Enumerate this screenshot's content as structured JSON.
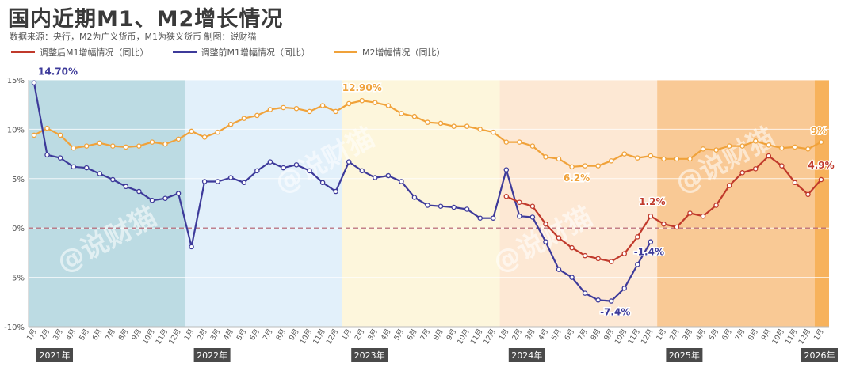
{
  "header": {
    "title": "国内近期M1、M2增长情况",
    "subtitle": "数据来源：央行，M2为广义货币，M1为狭义货币    制图：说财猫"
  },
  "watermark": "@说财猫",
  "colors": {
    "m1_after": "#c0392b",
    "m1_before": "#3d3a9a",
    "m2": "#f0a23a",
    "zero_line": "#b05a6a",
    "band_2021": "#bcdbe3",
    "band_2022": "#e2f0fa",
    "band_2023": "#fdf6dc",
    "band_2024": "#fde8d4",
    "band_2025": "#f9c995",
    "band_2026": "#f7b25c"
  },
  "chart_data": {
    "type": "line",
    "title": "国内近期M1、M2增长情况",
    "ylim": [
      -10,
      15
    ],
    "yticks": [
      "-10%",
      "-5%",
      "0%",
      "5%",
      "10%",
      "15%"
    ],
    "grid": true,
    "legend_position": "top-left",
    "x_tick_labels": [
      "1月",
      "2月",
      "3月",
      "4月",
      "5月",
      "6月",
      "7月",
      "8月",
      "9月",
      "10月",
      "11月",
      "12月",
      "1月",
      "2月",
      "3月",
      "4月",
      "5月",
      "6月",
      "7月",
      "8月",
      "9月",
      "10月",
      "11月",
      "12月",
      "1月",
      "2月",
      "3月",
      "4月",
      "5月",
      "6月",
      "7月",
      "8月",
      "9月",
      "10月",
      "11月",
      "12月",
      "1月",
      "2月",
      "3月",
      "4月",
      "5月",
      "6月",
      "7月",
      "8月",
      "9月",
      "10月",
      "11月",
      "12月",
      "1月",
      "2月",
      "3月",
      "4月",
      "5月",
      "6月",
      "7月",
      "8月",
      "9月",
      "10月",
      "11月",
      "12月",
      "1月"
    ],
    "year_labels": [
      {
        "label": "2021年",
        "start": 0,
        "end": 12
      },
      {
        "label": "2022年",
        "start": 12,
        "end": 24
      },
      {
        "label": "2023年",
        "start": 24,
        "end": 36
      },
      {
        "label": "2024年",
        "start": 36,
        "end": 48
      },
      {
        "label": "2025年",
        "start": 48,
        "end": 60
      },
      {
        "label": "2026年",
        "start": 60,
        "end": 61
      }
    ],
    "series": [
      {
        "name": "调整后M1增幅情况（同比）",
        "color": "#c0392b",
        "start_index": 36,
        "values": [
          3.2,
          2.6,
          2.2,
          0.4,
          -1.0,
          -2.0,
          -2.8,
          -3.1,
          -3.4,
          -2.6,
          -0.9,
          1.2,
          0.4,
          0.1,
          1.5,
          1.2,
          2.3,
          4.3,
          5.6,
          6.0,
          7.3,
          6.3,
          4.6,
          3.4,
          4.9
        ],
        "labels": [
          {
            "index": 47,
            "text": "1.2%"
          },
          {
            "index": 60,
            "text": "4.9%"
          }
        ]
      },
      {
        "name": "调整前M1增幅情况（同比）",
        "color": "#3d3a9a",
        "start_index": 0,
        "values": [
          14.7,
          7.4,
          7.1,
          6.2,
          6.1,
          5.5,
          4.9,
          4.2,
          3.7,
          2.8,
          3.0,
          3.5,
          -1.9,
          4.7,
          4.7,
          5.1,
          4.6,
          5.8,
          6.7,
          6.1,
          6.4,
          5.8,
          4.6,
          3.7,
          6.7,
          5.8,
          5.1,
          5.3,
          4.7,
          3.1,
          2.3,
          2.2,
          2.1,
          1.9,
          1.0,
          1.0,
          5.9,
          1.2,
          1.1,
          -1.4,
          -4.2,
          -5.0,
          -6.6,
          -7.3,
          -7.4,
          -6.1,
          -3.7,
          -1.4
        ],
        "labels": [
          {
            "index": 0,
            "text": "14.70%"
          },
          {
            "index": 44,
            "text": "-7.4%"
          },
          {
            "index": 47,
            "text": "-1.4%"
          }
        ]
      },
      {
        "name": "M2增幅情况（同比）",
        "color": "#f0a23a",
        "start_index": 0,
        "values": [
          9.4,
          10.1,
          9.4,
          8.1,
          8.3,
          8.6,
          8.3,
          8.2,
          8.3,
          8.7,
          8.5,
          9.0,
          9.8,
          9.2,
          9.7,
          10.5,
          11.1,
          11.4,
          12.0,
          12.2,
          12.1,
          11.8,
          12.4,
          11.8,
          12.6,
          12.9,
          12.7,
          12.4,
          11.6,
          11.3,
          10.7,
          10.6,
          10.3,
          10.3,
          10.0,
          9.7,
          8.7,
          8.7,
          8.3,
          7.2,
          7.0,
          6.2,
          6.3,
          6.3,
          6.8,
          7.5,
          7.1,
          7.3,
          7.0,
          7.0,
          7.0,
          8.0,
          7.9,
          8.3,
          8.3,
          8.8,
          8.4,
          8.1,
          8.2,
          8.0,
          8.7
        ],
        "labels": [
          {
            "index": 25,
            "text": "12.90%"
          },
          {
            "index": 41,
            "text": "6.2%"
          },
          {
            "index": 60,
            "text": "9%"
          }
        ]
      }
    ]
  }
}
